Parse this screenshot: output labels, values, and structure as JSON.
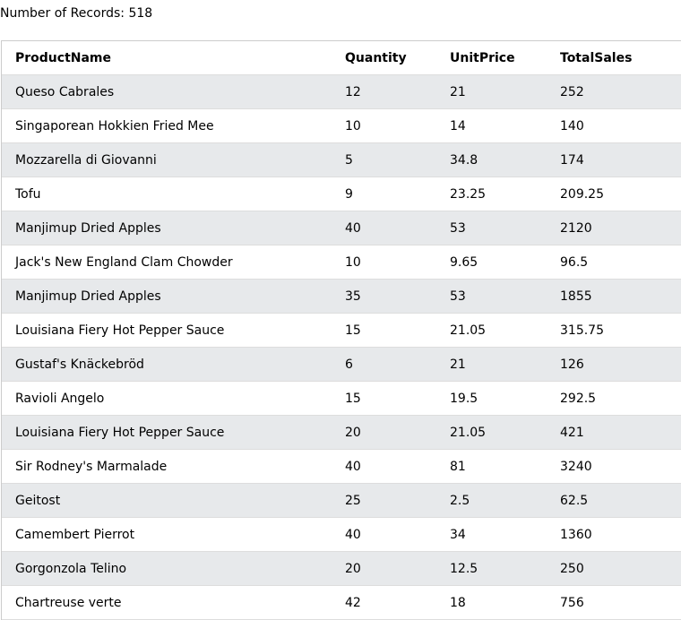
{
  "records": {
    "label": "Number of Records: 518"
  },
  "table": {
    "headers": [
      "ProductName",
      "Quantity",
      "UnitPrice",
      "TotalSales"
    ],
    "rows": [
      [
        "Queso Cabrales",
        "12",
        "21",
        "252"
      ],
      [
        "Singaporean Hokkien Fried Mee",
        "10",
        "14",
        "140"
      ],
      [
        "Mozzarella di Giovanni",
        "5",
        "34.8",
        "174"
      ],
      [
        "Tofu",
        "9",
        "23.25",
        "209.25"
      ],
      [
        "Manjimup Dried Apples",
        "40",
        "53",
        "2120"
      ],
      [
        "Jack's New England Clam Chowder",
        "10",
        "9.65",
        "96.5"
      ],
      [
        "Manjimup Dried Apples",
        "35",
        "53",
        "1855"
      ],
      [
        "Louisiana Fiery Hot Pepper Sauce",
        "15",
        "21.05",
        "315.75"
      ],
      [
        "Gustaf's Knäckebröd",
        "6",
        "21",
        "126"
      ],
      [
        "Ravioli Angelo",
        "15",
        "19.5",
        "292.5"
      ],
      [
        "Louisiana Fiery Hot Pepper Sauce",
        "20",
        "21.05",
        "421"
      ],
      [
        "Sir Rodney's Marmalade",
        "40",
        "81",
        "3240"
      ],
      [
        "Geitost",
        "25",
        "2.5",
        "62.5"
      ],
      [
        "Camembert Pierrot",
        "40",
        "34",
        "1360"
      ],
      [
        "Gorgonzola Telino",
        "20",
        "12.5",
        "250"
      ],
      [
        "Chartreuse verte",
        "42",
        "18",
        "756"
      ]
    ]
  },
  "colors": {
    "stripe": "#e7e9eb",
    "background": "#ffffff",
    "text": "#000000"
  }
}
